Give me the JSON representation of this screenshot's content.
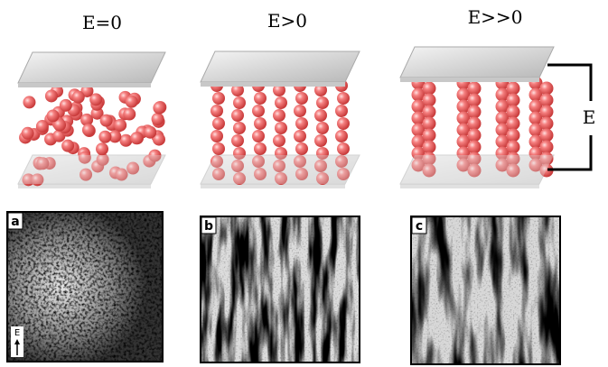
{
  "panels": [
    {
      "title": "E=0",
      "label": "a"
    },
    {
      "title": "E>0",
      "label": "b"
    },
    {
      "title": "E>>0",
      "label": "c"
    }
  ],
  "field_label": "E",
  "arrow_label": "E"
}
